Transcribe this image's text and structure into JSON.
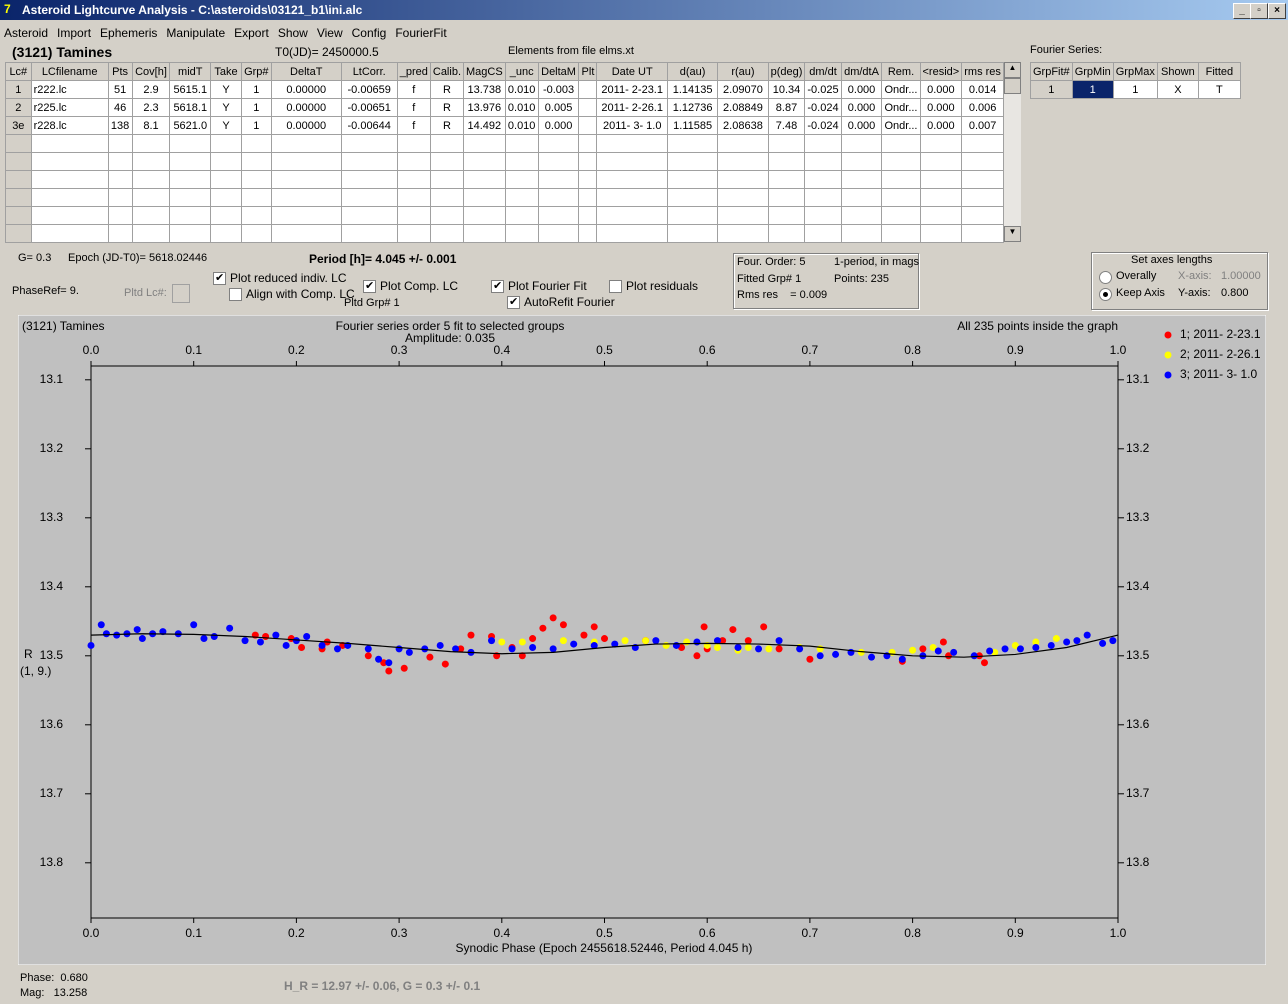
{
  "window": {
    "title": "Asteroid Lightcurve Analysis - C:\\asteroids\\03121_b1\\ini.alc"
  },
  "menu": [
    "Asteroid",
    "Import",
    "Ephemeris",
    "Manipulate",
    "Export",
    "Show",
    "View",
    "Config",
    "FourierFit"
  ],
  "header": {
    "asteroid": "(3121) Tamines",
    "t0": "T0(JD)= 2450000.5",
    "elements": "Elements from file elms.xt"
  },
  "table": {
    "columns": [
      "Lc#",
      "LCfilename",
      "Pts",
      "Cov[h]",
      "midT",
      "Take",
      "Grp#",
      "DeltaT",
      "LtCorr.",
      "_pred",
      "Calib.",
      "MagCS",
      "_unc",
      "DeltaM",
      "Plt",
      "Date UT",
      "d(au)",
      "r(au)",
      "p(deg)",
      "dm/dt",
      "dm/dtA",
      "Rem.",
      "<resid>",
      "rms res"
    ],
    "rows": [
      [
        "1",
        "r222.lc",
        "51",
        "2.9",
        "5615.1",
        "Y",
        "1",
        "0.00000",
        "-0.00659",
        "f",
        "R",
        "13.738",
        "0.010",
        "-0.003",
        null,
        "2011- 2-23.1",
        "1.14135",
        "2.09070",
        "10.34",
        "-0.025",
        "0.000",
        "Ondr...",
        "0.000",
        "0.014"
      ],
      [
        "2",
        "r225.lc",
        "46",
        "2.3",
        "5618.1",
        "Y",
        "1",
        "0.00000",
        "-0.00651",
        "f",
        "R",
        "13.976",
        "0.010",
        "0.005",
        null,
        "2011- 2-26.1",
        "1.12736",
        "2.08849",
        "8.87",
        "-0.024",
        "0.000",
        "Ondr...",
        "0.000",
        "0.006"
      ],
      [
        "3e",
        "r228.lc",
        "138",
        "8.1",
        "5621.0",
        "Y",
        "1",
        "0.00000",
        "-0.00644",
        "f",
        "R",
        "14.492",
        "0.010",
        "0.000",
        null,
        "2011- 3- 1.0",
        "1.11585",
        "2.08638",
        "7.48",
        "-0.024",
        "0.000",
        "Ondr...",
        "0.000",
        "0.007"
      ]
    ]
  },
  "fourier_table": {
    "title": "Fourier Series:",
    "columns": [
      "GrpFit#",
      "GrpMin",
      "GrpMax",
      "Shown",
      "Fitted"
    ],
    "row": [
      "1",
      "1",
      "1",
      "X",
      "T"
    ]
  },
  "controls": {
    "g": "G= 0.3",
    "epoch": "Epoch (JD-T0)= 5618.02446",
    "period": "Period [h]= 4.045 +/- 0.001",
    "phaseref": "PhaseRef= 9.",
    "pltd_lc": "Pltd Lc#:",
    "pltd_grp": "Pltd Grp#  1",
    "plot_reduced": {
      "label": "Plot reduced indiv. LC",
      "checked": true
    },
    "align": {
      "label": "Align with Comp. LC",
      "checked": false
    },
    "plot_comp": {
      "label": "Plot Comp. LC",
      "checked": true
    },
    "plot_fourier": {
      "label": "Plot Fourier Fit",
      "checked": true
    },
    "autorefit": {
      "label": "AutoRefit Fourier",
      "checked": true
    },
    "plot_residuals": {
      "label": "Plot residuals",
      "checked": false
    }
  },
  "info": {
    "order": "Four. Order:  5",
    "mode": "1-period, in mags",
    "fitted": "Fitted Grp# 1",
    "points": "Points: 235",
    "rms": "Rms res    = 0.009"
  },
  "axes_box": {
    "title": "Set axes lengths",
    "overally": {
      "label": "Overally",
      "checked": false
    },
    "keep": {
      "label": "Keep Axis",
      "checked": true
    },
    "x_label": "X-axis:",
    "x_value": "1.00000",
    "y_label": "Y-axis:",
    "y_value": "0.800"
  },
  "chart_data": {
    "type": "scatter",
    "title": "(3121) Tamines",
    "subtitle": "Fourier series order 5 fit to selected groups",
    "amplitude": "Amplitude: 0.035",
    "note": "All 235 points inside the graph",
    "x_label": "Synodic Phase (Epoch 2455618.52446, Period 4.045 h)",
    "y_label": "R",
    "y_sublabel": "(1, 9.)",
    "xlim": [
      0,
      1
    ],
    "ylim": [
      13.88,
      13.08
    ],
    "xticks": [
      {
        "value": 0,
        "label": "0.0"
      },
      0.1,
      0.2,
      0.3,
      0.4,
      0.5,
      0.6,
      0.7,
      0.8,
      0.9,
      {
        "value": 1,
        "label": "1.0"
      }
    ],
    "yticks": [
      13.1,
      13.2,
      13.3,
      13.4,
      13.5,
      13.6,
      13.7,
      13.8
    ],
    "series": [
      {
        "name": "1; 2011- 2-23.1",
        "color": "#ff0000",
        "x": [
          0.16,
          0.17,
          0.195,
          0.205,
          0.225,
          0.23,
          0.245,
          0.27,
          0.285,
          0.29,
          0.305,
          0.33,
          0.345,
          0.36,
          0.37,
          0.39,
          0.395,
          0.41,
          0.42,
          0.43,
          0.44,
          0.45,
          0.46,
          0.48,
          0.49,
          0.5,
          0.54,
          0.575,
          0.59,
          0.597,
          0.6,
          0.615,
          0.625,
          0.64,
          0.655,
          0.67,
          0.7,
          0.79,
          0.81,
          0.83,
          0.835,
          0.865,
          0.87
        ],
        "values": [
          13.47,
          13.472,
          13.475,
          13.488,
          13.49,
          13.48,
          13.485,
          13.5,
          13.51,
          13.522,
          13.518,
          13.502,
          13.512,
          13.49,
          13.47,
          13.472,
          13.5,
          13.488,
          13.5,
          13.475,
          13.46,
          13.445,
          13.455,
          13.47,
          13.458,
          13.475,
          13.478,
          13.488,
          13.5,
          13.458,
          13.49,
          13.478,
          13.462,
          13.478,
          13.458,
          13.49,
          13.505,
          13.508,
          13.49,
          13.48,
          13.5,
          13.5,
          13.51
        ]
      },
      {
        "name": "2; 2011- 2-26.1",
        "color": "#ffff00",
        "x": [
          0.4,
          0.42,
          0.46,
          0.49,
          0.52,
          0.54,
          0.56,
          0.58,
          0.6,
          0.61,
          0.63,
          0.64,
          0.66,
          0.69,
          0.71,
          0.75,
          0.78,
          0.8,
          0.82,
          0.84,
          0.88,
          0.9,
          0.92,
          0.94,
          0.96
        ],
        "values": [
          13.48,
          13.48,
          13.478,
          13.48,
          13.478,
          13.478,
          13.485,
          13.48,
          13.485,
          13.488,
          13.492,
          13.488,
          13.49,
          13.488,
          13.49,
          13.495,
          13.495,
          13.492,
          13.488,
          13.495,
          13.495,
          13.485,
          13.48,
          13.475,
          13.478
        ]
      },
      {
        "name": "3; 2011- 3- 1.0",
        "color": "#0000ff",
        "x": [
          0.0,
          0.01,
          0.015,
          0.025,
          0.035,
          0.045,
          0.05,
          0.06,
          0.07,
          0.085,
          0.1,
          0.11,
          0.12,
          0.135,
          0.15,
          0.165,
          0.18,
          0.19,
          0.2,
          0.21,
          0.225,
          0.24,
          0.25,
          0.27,
          0.28,
          0.29,
          0.3,
          0.31,
          0.325,
          0.34,
          0.355,
          0.37,
          0.39,
          0.41,
          0.43,
          0.45,
          0.47,
          0.49,
          0.51,
          0.53,
          0.55,
          0.57,
          0.59,
          0.61,
          0.63,
          0.65,
          0.67,
          0.69,
          0.71,
          0.725,
          0.74,
          0.76,
          0.775,
          0.79,
          0.81,
          0.825,
          0.84,
          0.86,
          0.875,
          0.89,
          0.905,
          0.92,
          0.935,
          0.95,
          0.96,
          0.97,
          0.985,
          0.995
        ],
        "values": [
          13.485,
          13.455,
          13.468,
          13.47,
          13.468,
          13.462,
          13.475,
          13.468,
          13.465,
          13.468,
          13.455,
          13.475,
          13.472,
          13.46,
          13.478,
          13.48,
          13.47,
          13.485,
          13.478,
          13.472,
          13.485,
          13.49,
          13.485,
          13.49,
          13.505,
          13.51,
          13.49,
          13.495,
          13.49,
          13.485,
          13.49,
          13.495,
          13.478,
          13.49,
          13.488,
          13.49,
          13.483,
          13.485,
          13.483,
          13.488,
          13.478,
          13.485,
          13.48,
          13.478,
          13.488,
          13.49,
          13.478,
          13.49,
          13.5,
          13.498,
          13.495,
          13.502,
          13.5,
          13.505,
          13.5,
          13.493,
          13.495,
          13.5,
          13.493,
          13.49,
          13.49,
          13.488,
          13.485,
          13.48,
          13.478,
          13.47,
          13.482,
          13.478
        ]
      }
    ],
    "fit": {
      "color": "#000000",
      "x": [
        0,
        0.05,
        0.1,
        0.15,
        0.2,
        0.25,
        0.3,
        0.35,
        0.4,
        0.45,
        0.5,
        0.55,
        0.6,
        0.65,
        0.7,
        0.75,
        0.8,
        0.85,
        0.9,
        0.95,
        1
      ],
      "values": [
        13.47,
        13.468,
        13.469,
        13.472,
        13.477,
        13.482,
        13.488,
        13.494,
        13.497,
        13.495,
        13.488,
        13.483,
        13.482,
        13.483,
        13.486,
        13.494,
        13.5,
        13.502,
        13.498,
        13.488,
        13.47
      ]
    }
  },
  "status": {
    "phase": "Phase:  0.680",
    "mag": "Mag:   13.258",
    "hg": "H_R = 12.97 +/- 0.06, G = 0.3 +/- 0.1"
  }
}
